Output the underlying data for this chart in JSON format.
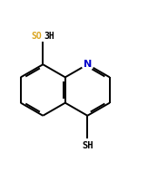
{
  "bg_color": "#ffffff",
  "bond_color": "#000000",
  "N_color": "#0000cd",
  "S_color": "#daa520",
  "text_color": "#000000",
  "figsize": [
    1.63,
    2.01
  ],
  "dpi": 100,
  "so3h_SO": "SO",
  "so3h_3H": "3H",
  "sh_text": "SH",
  "N_text": "N"
}
